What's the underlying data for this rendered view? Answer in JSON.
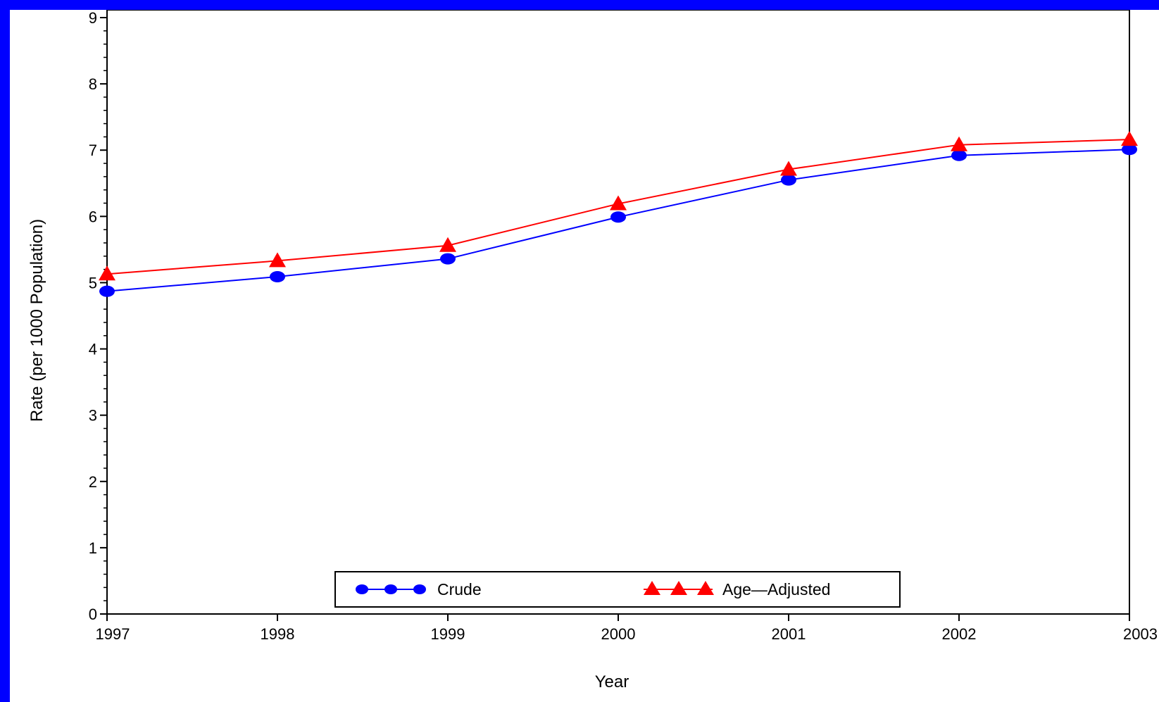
{
  "chart_data": {
    "type": "line",
    "title": "",
    "xlabel": "Year",
    "ylabel": "Rate (per 1000 Population)",
    "x": [
      "1997",
      "1998",
      "1999",
      "2000",
      "2001",
      "2002",
      "2003"
    ],
    "yticks": [
      "0",
      "1",
      "2",
      "3",
      "4",
      "5",
      "6",
      "7",
      "8",
      "9"
    ],
    "ylim": [
      0,
      9
    ],
    "grid": false,
    "legend_position": "bottom-center",
    "series": [
      {
        "name": "Crude",
        "values": [
          4.87,
          5.09,
          5.36,
          5.99,
          6.55,
          6.92,
          7.01
        ],
        "color": "#0000ff",
        "marker": "circle"
      },
      {
        "name": "Age—Adjusted",
        "values": [
          5.13,
          5.33,
          5.56,
          6.19,
          6.71,
          7.08,
          7.16
        ],
        "color": "#ff0000",
        "marker": "triangle"
      }
    ]
  },
  "colors": {
    "frame": "#0000ff",
    "background": "#ffffff",
    "axis": "#000000"
  }
}
